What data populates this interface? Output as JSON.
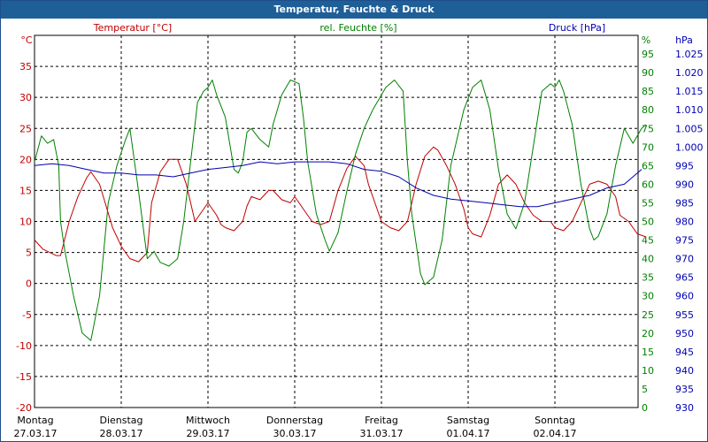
{
  "window": {
    "title": "Temperatur, Feuchte & Druck"
  },
  "colors": {
    "temperature": "#c00000",
    "humidity": "#008000",
    "pressure": "#0000b0",
    "grid": "#000000",
    "titlebar": "#1f5f98"
  },
  "chart_data": {
    "type": "line",
    "title": "Temperatur, Feuchte & Druck",
    "grid": true,
    "x": {
      "range": [
        0,
        7.1
      ],
      "ticks": [
        {
          "day": "Montag",
          "date": "27.03.17"
        },
        {
          "day": "Dienstag",
          "date": "28.03.17"
        },
        {
          "day": "Mittwoch",
          "date": "29.03.17"
        },
        {
          "day": "Donnerstag",
          "date": "30.03.17"
        },
        {
          "day": "Freitag",
          "date": "31.03.17"
        },
        {
          "day": "Samstag",
          "date": "01.04.17"
        },
        {
          "day": "Sonntag",
          "date": "02.04.17"
        }
      ]
    },
    "axes": {
      "temperature": {
        "unit": "°C",
        "range": [
          -20,
          40
        ],
        "ticks": [
          "-20",
          "-15",
          "-10",
          "-5",
          "0",
          "5",
          "10",
          "15",
          "20",
          "25",
          "30",
          "35"
        ]
      },
      "humidity": {
        "unit": "%",
        "range": [
          0,
          100
        ],
        "ticks": [
          "0",
          "5",
          "10",
          "15",
          "20",
          "25",
          "30",
          "35",
          "40",
          "45",
          "50",
          "55",
          "60",
          "65",
          "70",
          "75",
          "80",
          "85",
          "90",
          "95"
        ]
      },
      "pressure": {
        "unit": "hPa",
        "range": [
          930,
          1030
        ],
        "ticks": [
          "930",
          "935",
          "940",
          "945",
          "950",
          "955",
          "960",
          "965",
          "970",
          "975",
          "980",
          "985",
          "990",
          "995",
          "1.000",
          "1.005",
          "1.010",
          "1.015",
          "1.020",
          "1.025"
        ]
      }
    },
    "series": [
      {
        "name": "Temperatur [°C]",
        "axis": "temperature",
        "color": "#c00000",
        "x": [
          0,
          0.1,
          0.25,
          0.3,
          0.4,
          0.5,
          0.6,
          0.65,
          0.75,
          0.9,
          1.0,
          1.1,
          1.2,
          1.3,
          1.35,
          1.45,
          1.55,
          1.65,
          1.75,
          1.85,
          1.95,
          2.0,
          2.05,
          2.1,
          2.15,
          2.2,
          2.3,
          2.4,
          2.45,
          2.5,
          2.6,
          2.7,
          2.75,
          2.85,
          2.95,
          3.0,
          3.1,
          3.2,
          3.3,
          3.4,
          3.5,
          3.6,
          3.7,
          3.8,
          3.85,
          3.95,
          4.0,
          4.1,
          4.2,
          4.3,
          4.4,
          4.5,
          4.6,
          4.65,
          4.75,
          4.85,
          4.95,
          5.0,
          5.05,
          5.15,
          5.25,
          5.35,
          5.45,
          5.55,
          5.65,
          5.75,
          5.85,
          5.95,
          6.0,
          6.1,
          6.2,
          6.3,
          6.4,
          6.5,
          6.6,
          6.7,
          6.75,
          6.85,
          6.95,
          7.05
        ],
        "values": [
          7,
          5.5,
          4.5,
          4.5,
          10,
          14,
          17,
          18,
          16,
          9,
          6,
          4,
          3.5,
          5,
          13,
          18,
          20,
          20,
          16,
          10,
          12,
          13,
          12,
          11,
          9.5,
          9,
          8.5,
          10,
          12.5,
          14,
          13.5,
          15,
          15,
          13.5,
          13,
          14,
          12,
          10,
          9.5,
          10,
          15,
          18.5,
          20.5,
          19,
          16,
          12,
          10,
          9,
          8.5,
          10,
          16,
          20.5,
          22,
          21.5,
          19,
          16,
          12,
          9,
          8,
          7.5,
          11,
          16,
          17.5,
          16,
          13,
          11,
          10,
          10,
          9,
          8.5,
          10,
          13,
          16,
          16.5,
          16,
          14,
          11,
          10,
          8,
          7.5
        ]
      },
      {
        "name": "rel. Feuchte [%]",
        "axis": "humidity",
        "color": "#008000",
        "x": [
          0,
          0.08,
          0.15,
          0.22,
          0.28,
          0.3,
          0.35,
          0.45,
          0.55,
          0.65,
          0.75,
          0.85,
          0.95,
          1.05,
          1.1,
          1.2,
          1.3,
          1.38,
          1.4,
          1.45,
          1.55,
          1.65,
          1.72,
          1.8,
          1.88,
          1.95,
          2.0,
          2.05,
          2.1,
          2.2,
          2.3,
          2.35,
          2.4,
          2.45,
          2.5,
          2.6,
          2.7,
          2.75,
          2.85,
          2.95,
          3.05,
          3.1,
          3.15,
          3.25,
          3.35,
          3.4,
          3.5,
          3.6,
          3.7,
          3.8,
          3.9,
          4.0,
          4.05,
          4.15,
          4.25,
          4.3,
          4.35,
          4.45,
          4.5,
          4.6,
          4.7,
          4.8,
          4.95,
          5.05,
          5.15,
          5.25,
          5.35,
          5.45,
          5.5,
          5.55,
          5.65,
          5.75,
          5.85,
          5.95,
          6.0,
          6.05,
          6.1,
          6.2,
          6.3,
          6.4,
          6.45,
          6.5,
          6.6,
          6.7,
          6.8,
          6.9,
          7.0,
          7.05
        ],
        "values": [
          66,
          73,
          71,
          72,
          65,
          50,
          42,
          30,
          20,
          18,
          30,
          55,
          65,
          72,
          75,
          58,
          40,
          42,
          41,
          39,
          38,
          40,
          50,
          66,
          82,
          85,
          86,
          88,
          84,
          78,
          64,
          63,
          66,
          74,
          75,
          72,
          70,
          76,
          84,
          88,
          87,
          78,
          66,
          52,
          45,
          42,
          47,
          58,
          68,
          75,
          80,
          84,
          86,
          88,
          85,
          66,
          52,
          36,
          33,
          35,
          45,
          65,
          80,
          86,
          88,
          80,
          64,
          52,
          50,
          48,
          55,
          70,
          85,
          87,
          86,
          88,
          85,
          76,
          60,
          48,
          45,
          46,
          52,
          65,
          75,
          71,
          75,
          76
        ]
      },
      {
        "name": "Druck [hPa]",
        "axis": "pressure",
        "color": "#0000b0",
        "x": [
          0,
          0.2,
          0.4,
          0.6,
          0.8,
          1.0,
          1.2,
          1.4,
          1.6,
          1.8,
          2.0,
          2.2,
          2.4,
          2.6,
          2.8,
          3.0,
          3.2,
          3.4,
          3.6,
          3.8,
          4.0,
          4.2,
          4.4,
          4.6,
          4.8,
          5.0,
          5.2,
          5.4,
          5.6,
          5.8,
          6.0,
          6.2,
          6.4,
          6.6,
          6.8,
          7.0
        ],
        "values": [
          995,
          995.5,
          995,
          994,
          993,
          993,
          992.5,
          992.5,
          992,
          993,
          994,
          994.5,
          995,
          996,
          995.5,
          996,
          996,
          996,
          995.5,
          994,
          993.5,
          992,
          989,
          987,
          986,
          985.5,
          985,
          984.5,
          984,
          984,
          985,
          986,
          987,
          989,
          990,
          994
        ]
      }
    ]
  }
}
